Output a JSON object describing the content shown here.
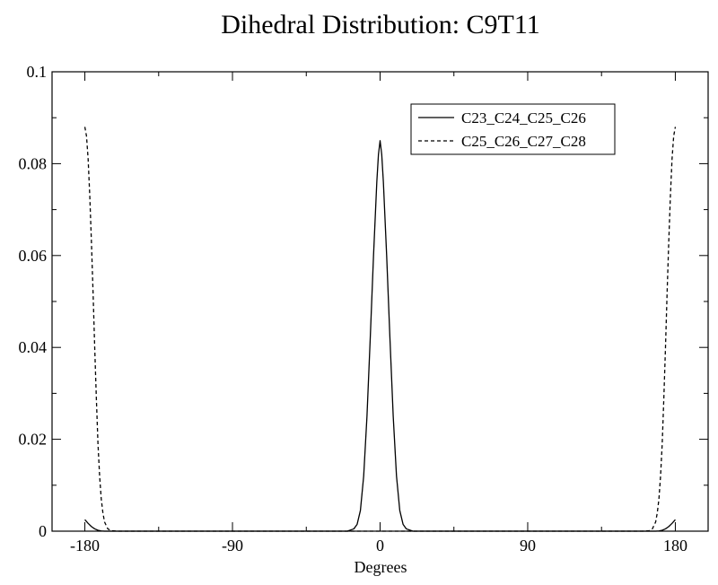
{
  "chart_data": {
    "type": "line",
    "title": "Dihedral Distribution: C9T11",
    "xlabel": "Degrees",
    "ylabel": "",
    "xlim": [
      -200,
      200
    ],
    "ylim": [
      0,
      0.1
    ],
    "xticks": [
      -180,
      -90,
      0,
      90,
      180
    ],
    "yticks": [
      0,
      0.02,
      0.04,
      0.06,
      0.08,
      0.1
    ],
    "xtick_labels": [
      "-180",
      "-90",
      "0",
      "90",
      "180"
    ],
    "ytick_labels": [
      "0",
      "0.02",
      "0.04",
      "0.06",
      "0.08",
      "0.1"
    ],
    "grid": false,
    "legend_position": "top-right",
    "series": [
      {
        "name": "C23_C24_C25_C26",
        "style": "solid",
        "color": "#000000",
        "x": [
          -180,
          -178,
          -176,
          -174,
          -172,
          -170,
          -168,
          -160,
          -40,
          -20,
          -16,
          -14,
          -12,
          -10,
          -8,
          -6,
          -4,
          -2,
          -1,
          0,
          1,
          2,
          4,
          6,
          8,
          10,
          12,
          14,
          16,
          20,
          40,
          160,
          168,
          170,
          172,
          174,
          176,
          178,
          180
        ],
        "y": [
          0.0025,
          0.0017,
          0.001,
          0.0005,
          0.0002,
          5e-05,
          0,
          0,
          0,
          0,
          0.0005,
          0.0015,
          0.0045,
          0.012,
          0.025,
          0.042,
          0.06,
          0.076,
          0.082,
          0.085,
          0.082,
          0.076,
          0.06,
          0.042,
          0.025,
          0.012,
          0.0045,
          0.0015,
          0.0005,
          0,
          0,
          0,
          0,
          5e-05,
          0.0002,
          0.0005,
          0.001,
          0.0017,
          0.0025
        ]
      },
      {
        "name": "C25_C26_C27_C28",
        "style": "dashed",
        "color": "#000000",
        "x": [
          -180,
          -179,
          -178,
          -177,
          -176,
          -175,
          -174,
          -173,
          -172,
          -171,
          -170,
          -169,
          -168,
          -166,
          -164,
          -160,
          160,
          164,
          166,
          168,
          169,
          170,
          171,
          172,
          173,
          174,
          175,
          176,
          177,
          178,
          179,
          180
        ],
        "y": [
          0.088,
          0.086,
          0.081,
          0.073,
          0.063,
          0.052,
          0.04,
          0.029,
          0.019,
          0.012,
          0.007,
          0.004,
          0.002,
          0.0005,
          0.0001,
          0,
          0,
          0.0001,
          0.0005,
          0.002,
          0.004,
          0.007,
          0.012,
          0.019,
          0.029,
          0.04,
          0.052,
          0.063,
          0.073,
          0.081,
          0.086,
          0.088
        ]
      }
    ]
  }
}
